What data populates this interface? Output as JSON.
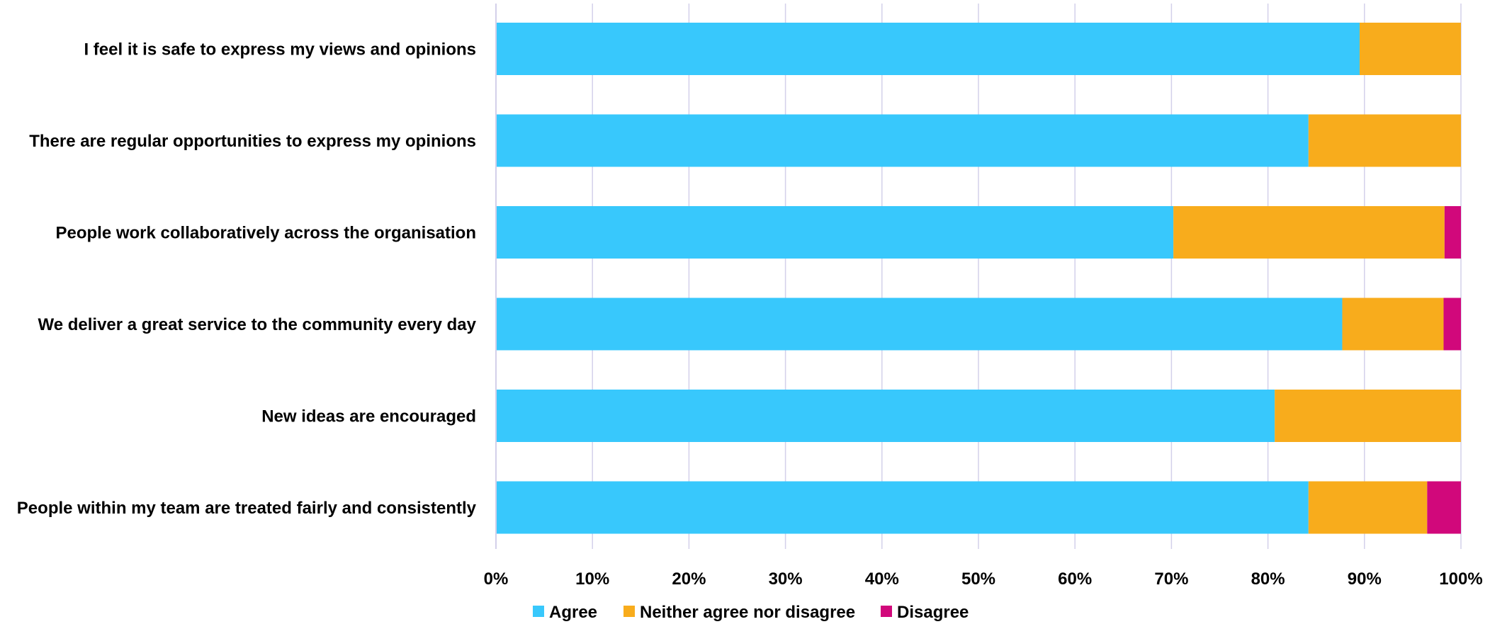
{
  "chart_data": {
    "type": "bar",
    "orientation": "horizontal",
    "stacked": true,
    "categories": [
      "I feel it is safe to express my views and opinions",
      "There are regular opportunities to express my opinions",
      "People work collaboratively across the organisation",
      "We deliver a great service to the community every day",
      "New ideas are encouraged",
      "People within my team are treated fairly and consistently"
    ],
    "series": [
      {
        "name": "Agree",
        "color": "#38C8FC",
        "values": [
          89.5,
          84.2,
          70.2,
          87.7,
          80.7,
          84.2
        ]
      },
      {
        "name": "Neither agree nor disagree",
        "color": "#F8AC1C",
        "values": [
          10.5,
          15.8,
          28.1,
          10.5,
          19.3,
          12.3
        ]
      },
      {
        "name": "Disagree",
        "color": "#D1087B",
        "values": [
          0,
          0,
          1.7,
          1.8,
          0,
          3.5
        ]
      }
    ],
    "xlim": [
      0,
      100
    ],
    "x_ticks": [
      "0%",
      "10%",
      "20%",
      "30%",
      "40%",
      "50%",
      "60%",
      "70%",
      "80%",
      "90%",
      "100%"
    ],
    "grid": true,
    "grid_color": "#D3D0EA",
    "legend_position": "bottom",
    "title": "",
    "xlabel": "",
    "ylabel": ""
  }
}
